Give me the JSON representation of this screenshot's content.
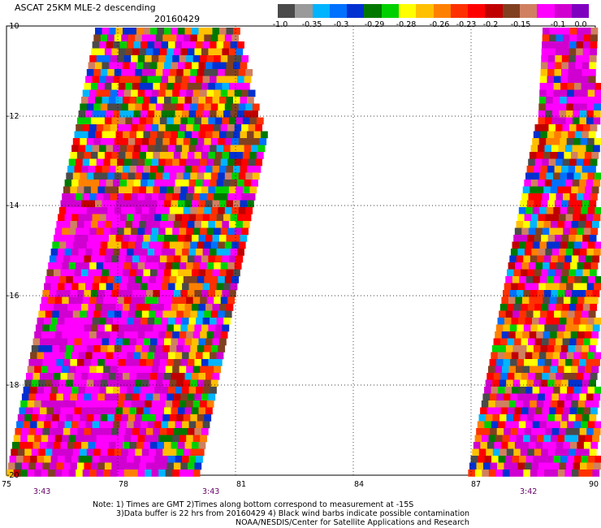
{
  "header": {
    "title": "ASCAT 25KM MLE-2 descending",
    "date": "20160429"
  },
  "colorbar": {
    "colors": [
      "#4a4a4a",
      "#9a9a9a",
      "#00b4ff",
      "#0070ff",
      "#0030d0",
      "#007800",
      "#00d000",
      "#ffff00",
      "#ffc000",
      "#ff8000",
      "#ff3000",
      "#ff0000",
      "#c00000",
      "#804020",
      "#d08060",
      "#ff00ff",
      "#d000d0",
      "#8000c0"
    ],
    "ticks": [
      "-1.0",
      "-0.35",
      "-0.3",
      "-0.29",
      "-0.28",
      "-0.26",
      "-0.23",
      "-0.2",
      "-0.15",
      "-0.1",
      "0.0"
    ]
  },
  "map": {
    "lat_labels": [
      "-10",
      "-12",
      "-14",
      "-16",
      "-18",
      "-20"
    ],
    "lon_labels": [
      "75",
      "78",
      "81",
      "84",
      "87",
      "90"
    ],
    "time_labels": [
      "3:43",
      "3:43",
      "3:42"
    ],
    "swath_colors": [
      "#ff0000",
      "#ff0000",
      "#ff3000",
      "#ff8000",
      "#ffc000",
      "#ffff00",
      "#ff00ff",
      "#d000d0",
      "#ff00ff",
      "#804020",
      "#c00000",
      "#00b4ff",
      "#0070ff",
      "#0030d0",
      "#00d000",
      "#007800",
      "#4a4a4a",
      "#d08060",
      "#ff3000",
      "#ffc000"
    ]
  },
  "notes": {
    "line1": "Note: 1) Times are GMT 2)Times along bottom correspond to measurement at -15S",
    "line2": "3)Data buffer is 22 hrs from 20160429 4) Black wind barbs indicate possible contamination",
    "line3": "NOAA/NESDIS/Center for Satellite Applications and Research"
  }
}
